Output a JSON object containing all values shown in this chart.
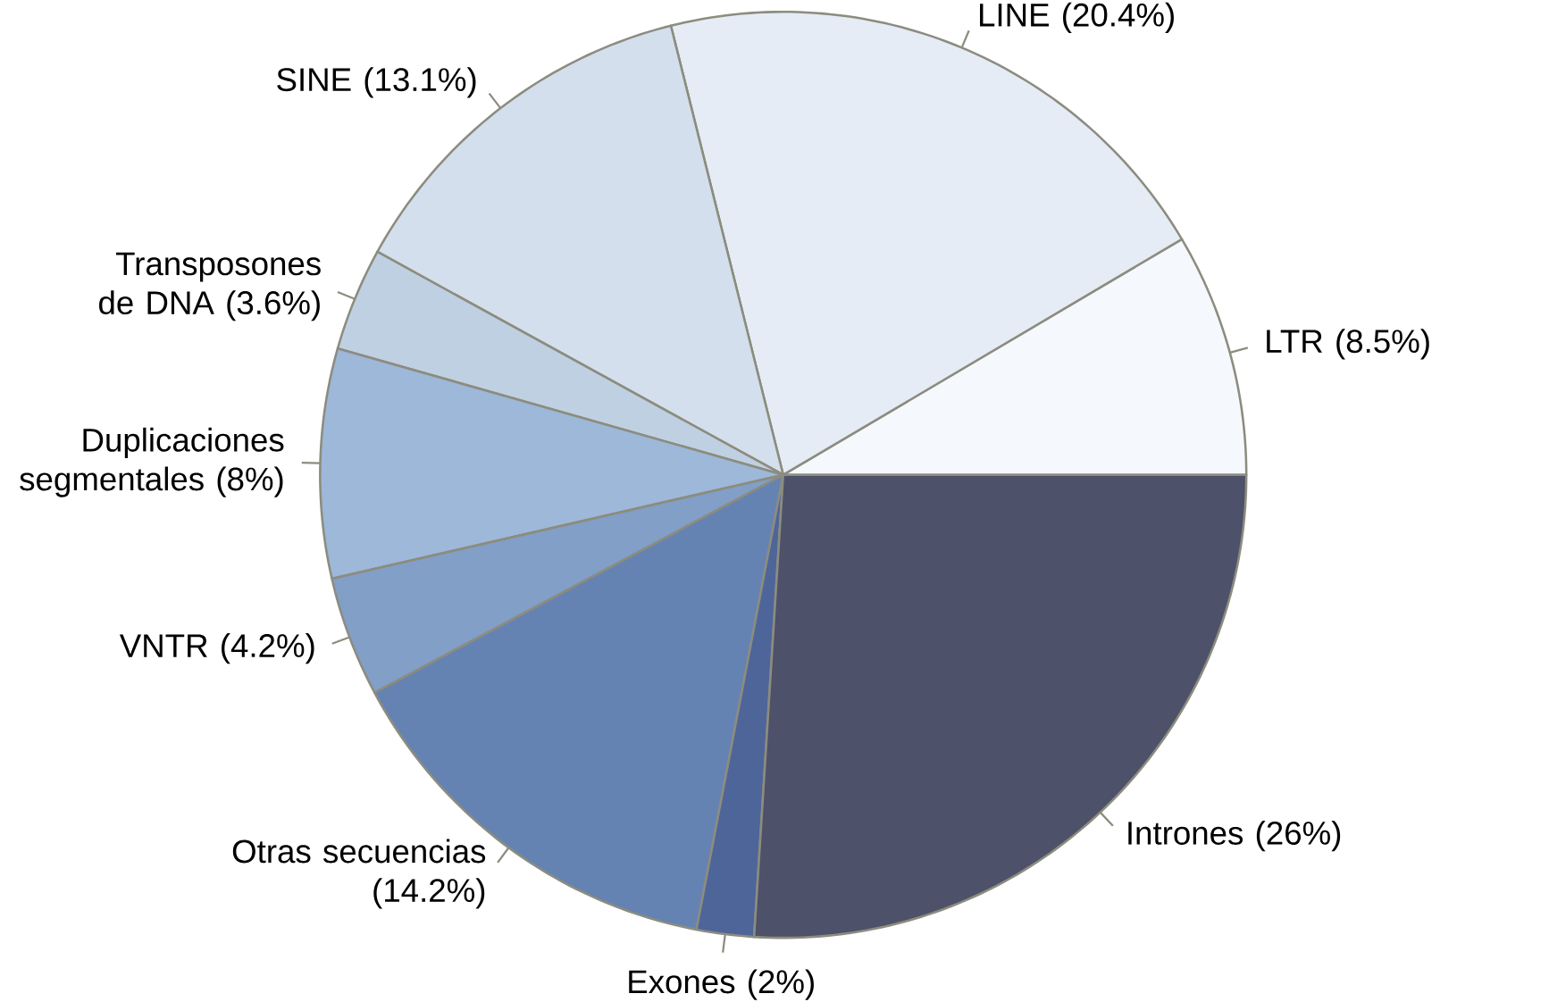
{
  "chart_data": {
    "type": "pie",
    "categories": [
      "LTR (8.5%)",
      "LINE (20.4%)",
      "SINE (13.1%)",
      "Transposones de DNA (3.6%)",
      "Duplicaciones segmentales (8%)",
      "VNTR (4.2%)",
      "Otras secuencias (14.2%)",
      "Exones (2%)",
      "Intrones (26%)"
    ],
    "values": [
      8.5,
      20.4,
      13.1,
      3.6,
      8,
      4.2,
      14.2,
      2,
      26
    ],
    "colors": [
      "#f5f8fc",
      "#e6ecf6",
      "#d3dfec",
      "#bfd0e3",
      "#9db8d8",
      "#819fc7",
      "#6583b2",
      "#4e659a",
      "#4d5169"
    ]
  }
}
